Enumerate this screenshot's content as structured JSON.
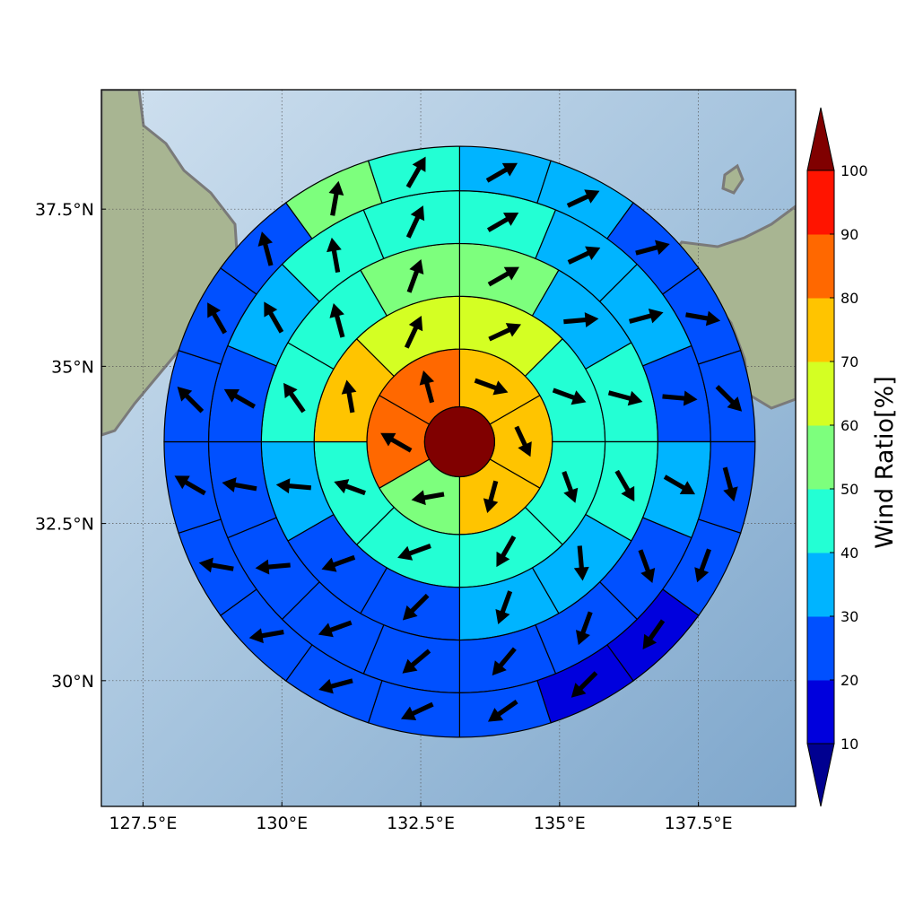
{
  "chart_data": {
    "type": "heatmap",
    "title": "",
    "map": {
      "lon_range": [
        126.75,
        139.25
      ],
      "lat_range": [
        28.0,
        39.4
      ],
      "grid": true,
      "xticks": [
        {
          "value": 127.5,
          "label": "127.5°E"
        },
        {
          "value": 130.0,
          "label": "130°E"
        },
        {
          "value": 132.5,
          "label": "132.5°E"
        },
        {
          "value": 135.0,
          "label": "135°E"
        },
        {
          "value": 137.5,
          "label": "137.5°E"
        }
      ],
      "yticks": [
        {
          "value": 30.0,
          "label": "30°N"
        },
        {
          "value": 32.5,
          "label": "32.5°N"
        },
        {
          "value": 35.0,
          "label": "35°N"
        },
        {
          "value": 37.5,
          "label": "37.5°N"
        }
      ]
    },
    "polar_grid": {
      "center_lon": 133.2,
      "center_lat": 33.8,
      "ring_radii_deg": [
        0.63,
        1.67,
        2.62,
        3.57,
        4.52,
        5.32
      ]
    },
    "colorbar": {
      "label": "Wind Ratio[%]",
      "levels": [
        10,
        20,
        30,
        40,
        50,
        60,
        70,
        80,
        90,
        100
      ],
      "colors": [
        "#0000dd",
        "#0050ff",
        "#00b4ff",
        "#23ffd4",
        "#7dff7d",
        "#d4ff23",
        "#ffc400",
        "#ff6800",
        "#ff1400"
      ],
      "under_color": "#000090",
      "over_color": "#800000"
    },
    "center_value": 100,
    "rings": [
      {
        "sectors": 6,
        "start_bearing": 0,
        "values": [
          75,
          75,
          75,
          55,
          80,
          80
        ],
        "arrows": [
          [
            110,
            0.8
          ],
          [
            155,
            0.75
          ],
          [
            195,
            0.75
          ],
          [
            260,
            0.75
          ],
          [
            300,
            0.8
          ],
          [
            345,
            0.75
          ]
        ]
      },
      {
        "sectors": 8,
        "start_bearing": 0,
        "values": [
          65,
          45,
          45,
          45,
          45,
          45,
          75,
          65
        ],
        "arrows": [
          [
            65,
            0.8
          ],
          [
            110,
            0.8
          ],
          [
            160,
            0.75
          ],
          [
            210,
            0.8
          ],
          [
            250,
            0.8
          ],
          [
            290,
            0.75
          ],
          [
            350,
            0.75
          ],
          [
            25,
            0.8
          ]
        ]
      },
      {
        "sectors": 12,
        "start_bearing": 0,
        "values": [
          55,
          35,
          45,
          45,
          35,
          35,
          25,
          25,
          35,
          45,
          45,
          55
        ],
        "arrows": [
          [
            60,
            0.8
          ],
          [
            85,
            0.8
          ],
          [
            105,
            0.8
          ],
          [
            150,
            0.8
          ],
          [
            175,
            0.8
          ],
          [
            200,
            0.8
          ],
          [
            225,
            0.8
          ],
          [
            250,
            0.8
          ],
          [
            275,
            0.8
          ],
          [
            325,
            0.8
          ],
          [
            345,
            0.8
          ],
          [
            20,
            0.8
          ]
        ]
      },
      {
        "sectors": 16,
        "start_bearing": 0,
        "values": [
          45,
          35,
          35,
          25,
          35,
          25,
          25,
          25,
          25,
          25,
          25,
          25,
          25,
          35,
          45,
          45
        ],
        "arrows": [
          [
            60,
            0.8
          ],
          [
            65,
            0.8
          ],
          [
            75,
            0.8
          ],
          [
            95,
            0.8
          ],
          [
            120,
            0.8
          ],
          [
            160,
            0.8
          ],
          [
            200,
            0.8
          ],
          [
            220,
            0.8
          ],
          [
            230,
            0.8
          ],
          [
            250,
            0.8
          ],
          [
            265,
            0.8
          ],
          [
            280,
            0.8
          ],
          [
            300,
            0.8
          ],
          [
            330,
            0.8
          ],
          [
            350,
            0.8
          ],
          [
            25,
            0.8
          ]
        ]
      },
      {
        "sectors": 20,
        "start_bearing": 0,
        "values": [
          35,
          35,
          25,
          25,
          25,
          25,
          25,
          15,
          15,
          25,
          25,
          25,
          25,
          25,
          25,
          25,
          25,
          25,
          55,
          45
        ],
        "arrows": [
          [
            60,
            0.8
          ],
          [
            65,
            0.8
          ],
          [
            75,
            0.8
          ],
          [
            100,
            0.8
          ],
          [
            135,
            0.8
          ],
          [
            165,
            0.8
          ],
          [
            200,
            0.8
          ],
          [
            215,
            0.8
          ],
          [
            225,
            0.8
          ],
          [
            235,
            0.8
          ],
          [
            245,
            0.8
          ],
          [
            255,
            0.8
          ],
          [
            260,
            0.8
          ],
          [
            280,
            0.8
          ],
          [
            300,
            0.8
          ],
          [
            315,
            0.8
          ],
          [
            330,
            0.8
          ],
          [
            345,
            0.8
          ],
          [
            10,
            0.8
          ],
          [
            30,
            0.8
          ]
        ]
      }
    ]
  }
}
